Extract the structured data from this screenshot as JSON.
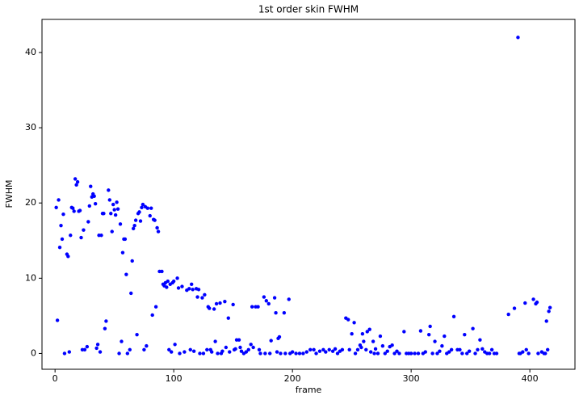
{
  "chart_data": {
    "type": "scatter",
    "title": "1st order skin FWHM",
    "xlabel": "frame",
    "ylabel": "FWHM",
    "color": "#0000ff",
    "xlim": [
      -11,
      438
    ],
    "ylim": [
      -2.1,
      44.4
    ],
    "xticks": [
      0,
      100,
      200,
      300,
      400
    ],
    "yticks": [
      0,
      10,
      20,
      30,
      40
    ],
    "x": [
      1,
      2,
      3,
      4,
      5,
      6,
      7,
      8,
      10,
      11,
      12,
      13,
      14,
      15,
      16,
      17,
      18,
      19,
      20,
      21,
      22,
      23,
      24,
      25,
      27,
      28,
      29,
      30,
      31,
      32,
      33,
      34,
      35,
      36,
      37,
      38,
      39,
      40,
      41,
      42,
      43,
      45,
      46,
      47,
      48,
      49,
      50,
      51,
      52,
      53,
      54,
      55,
      56,
      57,
      58,
      59,
      60,
      61,
      63,
      64,
      65,
      66,
      67,
      68,
      69,
      70,
      71,
      72,
      73,
      74,
      75,
      76,
      77,
      78,
      80,
      81,
      82,
      83,
      84,
      85,
      86,
      87,
      88,
      90,
      91,
      92,
      93,
      94,
      95,
      96,
      97,
      98,
      99,
      100,
      101,
      103,
      104,
      105,
      107,
      109,
      111,
      113,
      114,
      115,
      116,
      117,
      119,
      120,
      121,
      122,
      124,
      125,
      126,
      128,
      129,
      130,
      131,
      132,
      134,
      135,
      136,
      137,
      139,
      140,
      141,
      143,
      144,
      146,
      147,
      150,
      151,
      152,
      153,
      155,
      156,
      157,
      159,
      161,
      163,
      165,
      166,
      167,
      169,
      171,
      172,
      173,
      176,
      177,
      178,
      180,
      181,
      182,
      185,
      186,
      187,
      188,
      189,
      190,
      193,
      194,
      197,
      198,
      200,
      203,
      206,
      209,
      212,
      215,
      218,
      220,
      223,
      226,
      228,
      231,
      234,
      236,
      238,
      240,
      242,
      245,
      247,
      248,
      250,
      252,
      253,
      255,
      257,
      258,
      259,
      260,
      262,
      263,
      265,
      266,
      268,
      269,
      270,
      272,
      274,
      276,
      278,
      280,
      282,
      284,
      286,
      288,
      290,
      294,
      296,
      298,
      300,
      303,
      306,
      308,
      310,
      312,
      315,
      316,
      318,
      320,
      322,
      324,
      326,
      328,
      330,
      332,
      334,
      336,
      339,
      341,
      343,
      345,
      347,
      349,
      352,
      354,
      356,
      358,
      360,
      362,
      364,
      366,
      368,
      370,
      372,
      382,
      387,
      390,
      391,
      392,
      394,
      396,
      397,
      399,
      403,
      405,
      406,
      407,
      410,
      412,
      413,
      414,
      415,
      416,
      417
    ],
    "values": [
      19.4,
      4.4,
      20.4,
      14.1,
      17,
      15.2,
      18.5,
      0,
      13.2,
      12.9,
      0.2,
      15.7,
      19.4,
      19.3,
      18.9,
      23.2,
      22.4,
      22.8,
      18.9,
      19,
      15.4,
      0.5,
      16.4,
      0.5,
      0.9,
      17.5,
      19.6,
      22.2,
      20.8,
      21.2,
      20.9,
      19.9,
      0.7,
      1.2,
      15.7,
      0.2,
      15.7,
      18.6,
      18.6,
      3.3,
      4.3,
      21.7,
      20.4,
      18.6,
      16.2,
      19.8,
      19.1,
      18.4,
      20.1,
      19.2,
      0,
      17.2,
      1.6,
      13.4,
      15.2,
      15.2,
      10.5,
      0,
      0.5,
      8,
      12.3,
      16.6,
      17,
      17.7,
      2.5,
      18.6,
      18.8,
      17.6,
      19.4,
      19.8,
      0.5,
      19.5,
      1,
      19.3,
      18.3,
      19.3,
      5.1,
      17.8,
      17.7,
      6.2,
      16.7,
      16.2,
      10.9,
      10.9,
      9.2,
      9,
      9.4,
      8.8,
      9.6,
      0.5,
      9.2,
      0.2,
      9.4,
      9.6,
      1.2,
      10,
      8.7,
      0,
      8.9,
      0.2,
      8.4,
      8.6,
      0.5,
      9.2,
      8.5,
      0.3,
      8.6,
      7.5,
      8.5,
      0,
      7.4,
      0,
      7.8,
      0.5,
      6.2,
      6,
      0.5,
      0.2,
      5.9,
      1.6,
      6.6,
      0,
      6.7,
      0,
      0.3,
      6.9,
      0.8,
      4.7,
      0.2,
      6.5,
      0.5,
      0.6,
      1.8,
      1.8,
      0.8,
      0.3,
      0,
      0.2,
      0.5,
      1.2,
      6.2,
      0.8,
      6.2,
      6.2,
      0.5,
      0,
      7.5,
      0,
      7,
      6.6,
      0,
      1.7,
      7.4,
      5.4,
      0.2,
      2,
      2.2,
      0,
      5.4,
      0,
      7.2,
      0,
      0.2,
      0,
      0,
      0,
      0.2,
      0.5,
      0.5,
      0,
      0.3,
      0.5,
      0.2,
      0.5,
      0.3,
      0.6,
      0,
      0.3,
      0.5,
      4.7,
      4.5,
      0.5,
      2.6,
      4.1,
      0,
      0.5,
      1.1,
      0.8,
      2.6,
      1.6,
      0.5,
      2.9,
      3.2,
      0.2,
      1.6,
      0,
      0.6,
      0,
      2.3,
      1,
      0,
      0.3,
      0.9,
      1.1,
      0,
      0.3,
      0,
      2.9,
      0,
      0,
      0,
      0,
      0,
      3,
      0,
      0.2,
      2.5,
      3.6,
      0,
      1.6,
      0,
      0.3,
      1,
      2.3,
      0,
      0.2,
      0.5,
      4.9,
      0.5,
      0.5,
      0,
      2.5,
      0,
      0.3,
      3.3,
      0,
      0.5,
      1.8,
      0.6,
      0.2,
      0,
      0,
      0.5,
      0,
      0,
      5.2,
      6,
      42,
      0,
      0,
      0.2,
      6.7,
      0.5,
      0,
      7.2,
      6.6,
      6.8,
      0,
      0.2,
      0,
      0,
      4.3,
      0.5,
      5.6,
      6.1
    ]
  }
}
